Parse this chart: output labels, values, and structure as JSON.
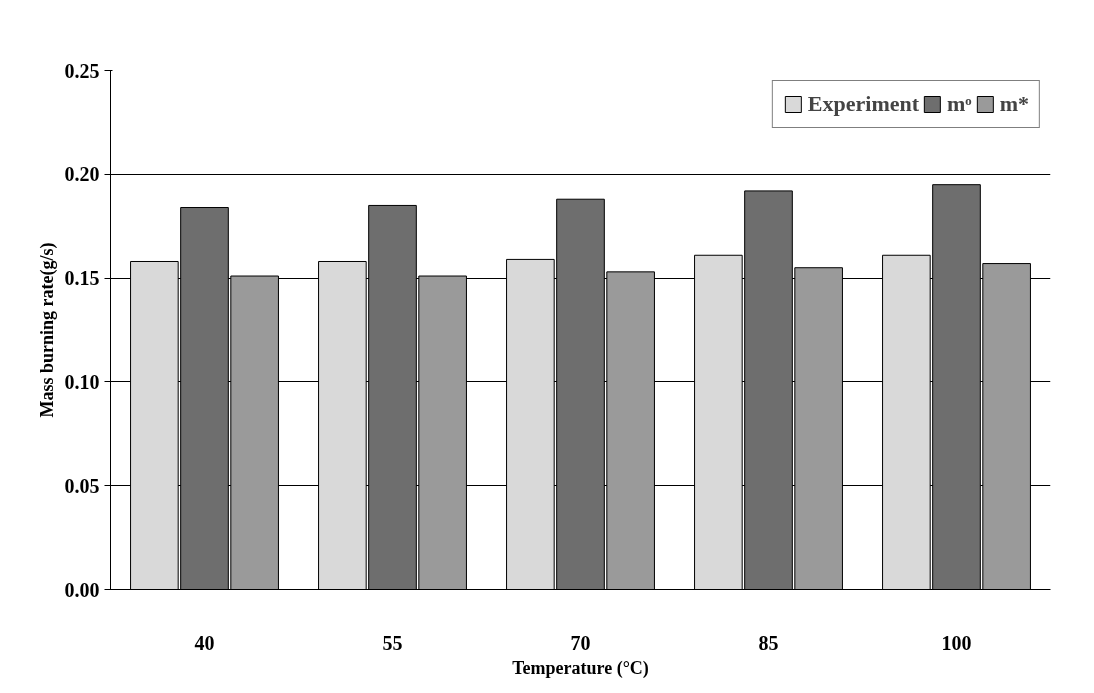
{
  "chart_data": {
    "type": "bar",
    "xlabel": "Temperature (°C)",
    "ylabel": "Mass burning rate(g/s)",
    "categories": [
      "40",
      "55",
      "70",
      "85",
      "100"
    ],
    "series": [
      {
        "name": "Experiment",
        "color": "#d9d9d9",
        "values": [
          0.158,
          0.158,
          0.159,
          0.161,
          0.161
        ]
      },
      {
        "name": "mᵒ",
        "color": "#6e6e6e",
        "values": [
          0.184,
          0.185,
          0.188,
          0.192,
          0.195
        ]
      },
      {
        "name": "m*",
        "color": "#9a9a9a",
        "values": [
          0.151,
          0.151,
          0.153,
          0.155,
          0.157
        ]
      }
    ],
    "ylim": [
      0,
      0.25
    ],
    "yticks": [
      {
        "value": 0,
        "label": "0.00"
      },
      {
        "value": 0.05,
        "label": "0.05"
      },
      {
        "value": 0.1,
        "label": "0.10"
      },
      {
        "value": 0.15,
        "label": "0.15"
      },
      {
        "value": 0.2,
        "label": "0.20"
      },
      {
        "value": 0.25,
        "label": "0.25"
      }
    ],
    "grid": "y",
    "legend": "top right"
  }
}
